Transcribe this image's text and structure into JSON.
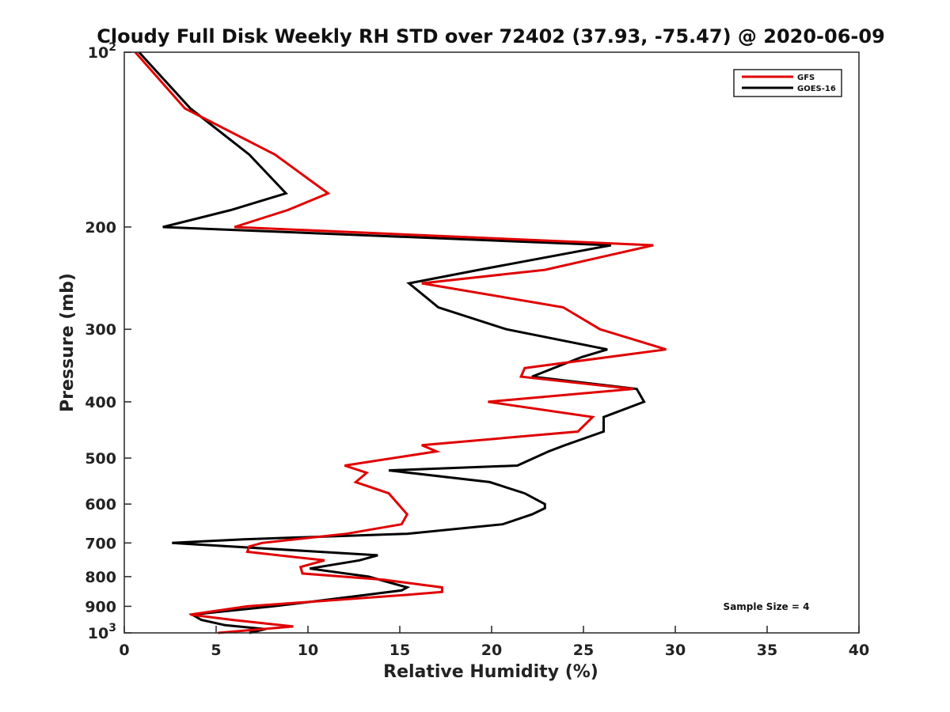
{
  "chart_data": {
    "type": "line",
    "title": "Cloudy Full Disk Weekly RH STD over 72402 (37.93, -75.47) @ 2020-06-09",
    "xlabel": "Relative Humidity (%)",
    "ylabel": "Pressure (mb)",
    "xlim": [
      0,
      40
    ],
    "ylim": [
      100,
      1000
    ],
    "y_scale": "log",
    "y_reversed": true,
    "grid": false,
    "legend_position": "top-right",
    "x_ticks": [
      "0",
      "5",
      "10",
      "15",
      "20",
      "25",
      "30",
      "35",
      "40"
    ],
    "y_ticks": [
      {
        "value": 100,
        "base": "10",
        "exp": "2"
      },
      {
        "value": 200,
        "label": "200"
      },
      {
        "value": 300,
        "label": "300"
      },
      {
        "value": 400,
        "label": "400"
      },
      {
        "value": 500,
        "label": "500"
      },
      {
        "value": 600,
        "label": "600"
      },
      {
        "value": 700,
        "label": "700"
      },
      {
        "value": 800,
        "label": "800"
      },
      {
        "value": 900,
        "label": "900"
      },
      {
        "value": 1000,
        "base": "10",
        "exp": "3"
      }
    ],
    "annotation": "Sample Size = 4",
    "series": [
      {
        "name": "GFS",
        "color": "#e00000",
        "points": [
          [
            0.6,
            100
          ],
          [
            3.3,
            125
          ],
          [
            8.2,
            150
          ],
          [
            11.1,
            175
          ],
          [
            8.9,
            187
          ],
          [
            6.0,
            200
          ],
          [
            28.8,
            215
          ],
          [
            22.9,
            237
          ],
          [
            16.2,
            250
          ],
          [
            23.9,
            275
          ],
          [
            25.9,
            300
          ],
          [
            29.5,
            325
          ],
          [
            21.8,
            350
          ],
          [
            21.6,
            362
          ],
          [
            27.7,
            380
          ],
          [
            19.8,
            400
          ],
          [
            25.5,
            425
          ],
          [
            24.7,
            450
          ],
          [
            16.2,
            475
          ],
          [
            17.0,
            487
          ],
          [
            12.0,
            515
          ],
          [
            13.2,
            530
          ],
          [
            12.6,
            550
          ],
          [
            14.4,
            575
          ],
          [
            15.4,
            625
          ],
          [
            15.1,
            650
          ],
          [
            12.1,
            675
          ],
          [
            7.5,
            700
          ],
          [
            6.8,
            710
          ],
          [
            6.7,
            725
          ],
          [
            10.9,
            750
          ],
          [
            9.6,
            770
          ],
          [
            9.7,
            790
          ],
          [
            14.1,
            810
          ],
          [
            17.3,
            835
          ],
          [
            17.3,
            850
          ],
          [
            15.4,
            860
          ],
          [
            9.9,
            885
          ],
          [
            6.7,
            900
          ],
          [
            3.6,
            930
          ],
          [
            5.9,
            950
          ],
          [
            9.2,
            975
          ],
          [
            5.1,
            1000
          ]
        ]
      },
      {
        "name": "GOES-16",
        "color": "#000000",
        "points": [
          [
            0.8,
            100
          ],
          [
            3.6,
            125
          ],
          [
            6.8,
            150
          ],
          [
            8.8,
            175
          ],
          [
            5.8,
            187
          ],
          [
            2.1,
            200
          ],
          [
            26.5,
            215
          ],
          [
            19.3,
            237
          ],
          [
            15.5,
            250
          ],
          [
            17.1,
            275
          ],
          [
            20.8,
            300
          ],
          [
            26.3,
            325
          ],
          [
            24.9,
            335
          ],
          [
            22.2,
            362
          ],
          [
            27.9,
            380
          ],
          [
            28.3,
            400
          ],
          [
            26.1,
            425
          ],
          [
            26.1,
            450
          ],
          [
            24.0,
            475
          ],
          [
            23.1,
            487
          ],
          [
            21.4,
            515
          ],
          [
            14.4,
            525
          ],
          [
            19.9,
            550
          ],
          [
            21.8,
            575
          ],
          [
            22.9,
            600
          ],
          [
            22.9,
            610
          ],
          [
            22.2,
            625
          ],
          [
            20.6,
            650
          ],
          [
            15.4,
            675
          ],
          [
            6.5,
            690
          ],
          [
            2.6,
            700
          ],
          [
            13.8,
            735
          ],
          [
            12.8,
            750
          ],
          [
            10.1,
            775
          ],
          [
            13.3,
            800
          ],
          [
            15.4,
            835
          ],
          [
            15.1,
            845
          ],
          [
            13.2,
            860
          ],
          [
            10.0,
            885
          ],
          [
            8.1,
            900
          ],
          [
            3.7,
            930
          ],
          [
            4.2,
            950
          ],
          [
            5.5,
            970
          ],
          [
            7.7,
            985
          ],
          [
            6.8,
            1000
          ]
        ]
      }
    ]
  }
}
